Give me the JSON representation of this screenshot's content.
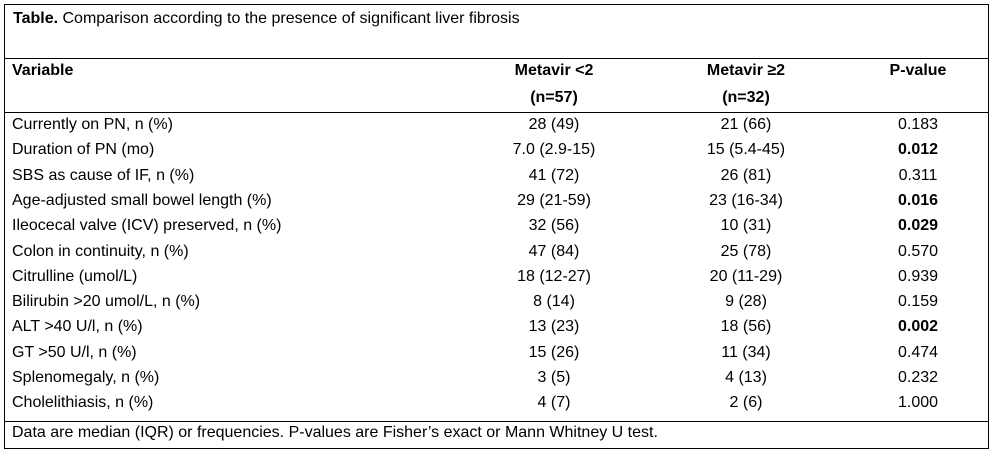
{
  "table": {
    "title_prefix": "Table.",
    "title_text": " Comparison according to the presence of significant liver fibrosis",
    "headers": {
      "variable": "Variable",
      "metavir_lt2": "Metavir <2",
      "metavir_lt2_n": "(n=57)",
      "metavir_ge2": "Metavir ≥2",
      "metavir_ge2_n": "(n=32)",
      "pvalue": "P-value"
    },
    "rows": [
      {
        "variable": "Currently on PN, n (%)",
        "m1": "28 (49)",
        "m2": "21 (66)",
        "p": "0.183",
        "significant": false
      },
      {
        "variable": "Duration of PN (mo)",
        "m1": "7.0 (2.9-15)",
        "m2": "15 (5.4-45)",
        "p": "0.012",
        "significant": true
      },
      {
        "variable": "SBS as cause of IF, n (%)",
        "m1": "41 (72)",
        "m2": "26 (81)",
        "p": "0.311",
        "significant": false
      },
      {
        "variable": "Age-adjusted small bowel length (%)",
        "m1": "29 (21-59)",
        "m2": "23 (16-34)",
        "p": "0.016",
        "significant": true
      },
      {
        "variable": "Ileocecal valve (ICV) preserved, n (%)",
        "m1": "32 (56)",
        "m2": "10 (31)",
        "p": "0.029",
        "significant": true
      },
      {
        "variable": "Colon in continuity, n (%)",
        "m1": "47 (84)",
        "m2": "25 (78)",
        "p": "0.570",
        "significant": false
      },
      {
        "variable": "Citrulline (umol/L)",
        "m1": "18 (12-27)",
        "m2": "20 (11-29)",
        "p": "0.939",
        "significant": false
      },
      {
        "variable": "Bilirubin >20 umol/L, n (%)",
        "m1": "8 (14)",
        "m2": "9 (28)",
        "p": "0.159",
        "significant": false
      },
      {
        "variable": "ALT >40 U/l, n (%)",
        "m1": "13 (23)",
        "m2": "18 (56)",
        "p": "0.002",
        "significant": true
      },
      {
        "variable": "GT >50 U/l, n (%)",
        "m1": "15 (26)",
        "m2": "11 (34)",
        "p": "0.474",
        "significant": false
      },
      {
        "variable": "Splenomegaly, n (%)",
        "m1": "3 (5)",
        "m2": "4 (13)",
        "p": "0.232",
        "significant": false
      },
      {
        "variable": "Cholelithiasis, n (%)",
        "m1": "4 (7)",
        "m2": "2 (6)",
        "p": "1.000",
        "significant": false
      }
    ],
    "footnote": "Data are median (IQR) or frequencies. P-values are Fisher’s exact or Mann Whitney U test."
  }
}
